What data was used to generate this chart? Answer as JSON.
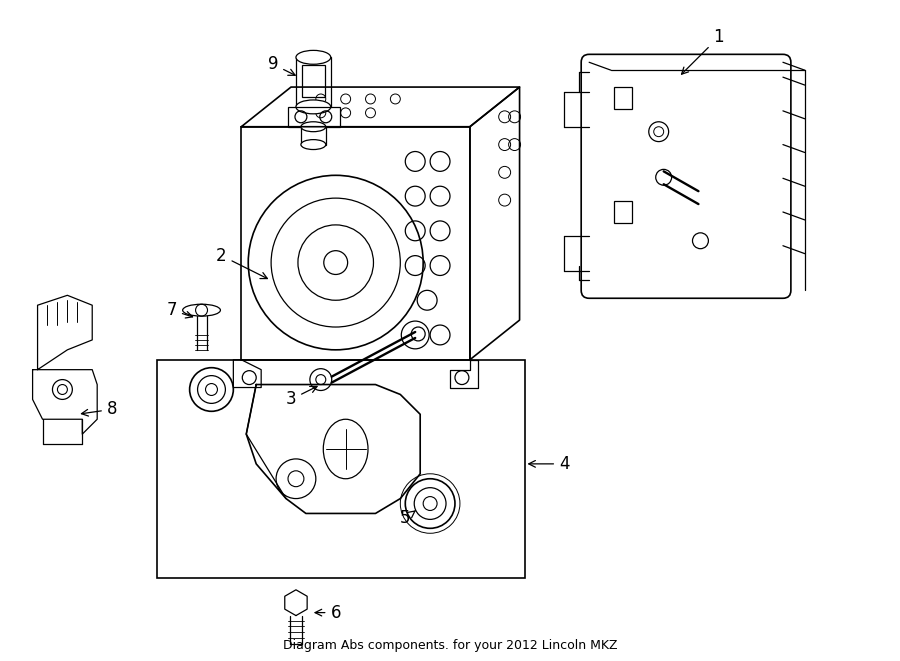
{
  "title": "Diagram Abs components. for your 2012 Lincoln MKZ",
  "background_color": "#ffffff",
  "line_color": "#000000",
  "text_color": "#000000",
  "fig_width": 9.0,
  "fig_height": 6.61,
  "dpi": 100
}
